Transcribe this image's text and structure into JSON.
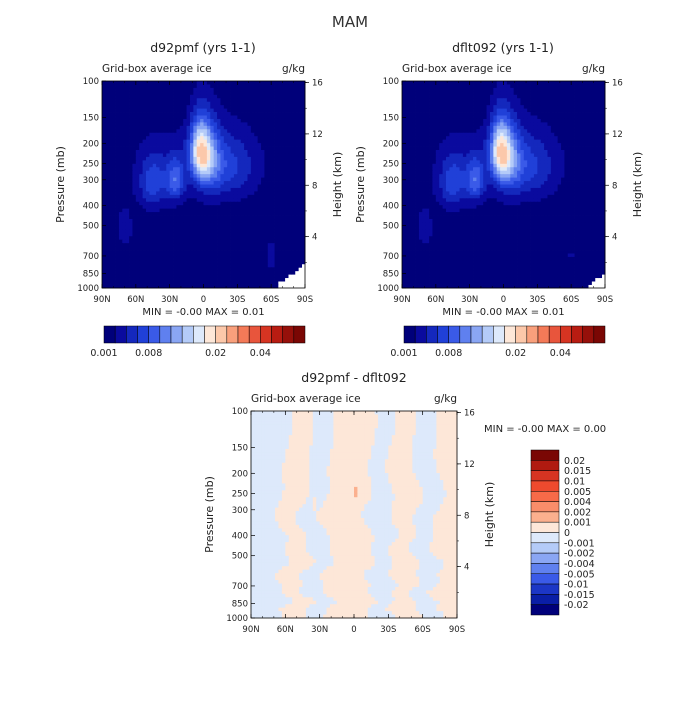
{
  "figure": {
    "title": "MAM"
  },
  "chart_data": [
    {
      "type": "heatmap",
      "id": "p1",
      "title": "d92pmf (yrs 1-1)",
      "subtitle_left": "Grid-box average ice",
      "subtitle_right": "g/kg",
      "ylabel": "Pressure (mb)",
      "ylabel_right": "Height (km)",
      "x_ticks": [
        "90N",
        "60N",
        "30N",
        "0",
        "30S",
        "60S",
        "90S"
      ],
      "y_ticks": [
        "100",
        "150",
        "200",
        "250",
        "300",
        "400",
        "500",
        "700",
        "850",
        "1000"
      ],
      "y_ticks_right": [
        "16",
        "12",
        "8",
        "4"
      ],
      "min_max_text": "MIN =   -0.00   MAX =    0.01",
      "colorbar_levels": [
        "0.001",
        "0.002",
        "0.004",
        "0.006",
        "0.008",
        "0.01",
        "0.012",
        "0.014",
        "0.016",
        "0.018",
        "0.02",
        "0.025",
        "0.03",
        "0.035",
        "0.04",
        "0.045",
        "0.05",
        "0.055",
        "0.06"
      ],
      "colorbar_tick_labels": [
        "0.001",
        "0.008",
        "0.02",
        "0.04"
      ],
      "colors": [
        "#00007a",
        "#0a0a9e",
        "#1428bd",
        "#2040d8",
        "#3a5ae8",
        "#5f80ef",
        "#8aa6f4",
        "#b4cbf8",
        "#dde9fb",
        "#fde7d8",
        "#fcc8aa",
        "#f9a07c",
        "#f47a58",
        "#e8553c",
        "#d63422",
        "#b81c12",
        "#96100a",
        "#7a0704"
      ],
      "features": [
        {
          "lat": 3,
          "p": 215,
          "peak": 0.014,
          "wlat": 9,
          "wp": 70
        },
        {
          "lat": -5,
          "p": 240,
          "peak": 0.008,
          "wlat": 12,
          "wp": 90
        },
        {
          "lat": 25,
          "p": 300,
          "peak": 0.0075,
          "wlat": 8,
          "wp": 70
        },
        {
          "lat": 45,
          "p": 310,
          "peak": 0.006,
          "wlat": 12,
          "wp": 90
        },
        {
          "lat": -25,
          "p": 260,
          "peak": 0.004,
          "wlat": 20,
          "wp": 90
        },
        {
          "lat": -60,
          "p": 700,
          "peak": 0.003,
          "wlat": 4,
          "wp": 120
        },
        {
          "lat": 70,
          "p": 520,
          "peak": 0.002,
          "wlat": 10,
          "wp": 150
        }
      ],
      "missing_region": {
        "lat_from": -65,
        "lat_to": -90,
        "p_from": 960
      }
    },
    {
      "type": "heatmap",
      "id": "p2",
      "title": "dflt092 (yrs 1-1)",
      "subtitle_left": "Grid-box average ice",
      "subtitle_right": "g/kg",
      "ylabel": "Pressure (mb)",
      "ylabel_right": "Height (km)",
      "x_ticks": [
        "90N",
        "60N",
        "30N",
        "0",
        "30S",
        "60S",
        "90S"
      ],
      "y_ticks": [
        "100",
        "150",
        "200",
        "250",
        "300",
        "400",
        "500",
        "700",
        "850",
        "1000"
      ],
      "y_ticks_right": [
        "16",
        "12",
        "8",
        "4"
      ],
      "min_max_text": "MIN =   -0.00   MAX =    0.01",
      "colorbar_levels": [
        "0.001",
        "0.002",
        "0.004",
        "0.006",
        "0.008",
        "0.01",
        "0.012",
        "0.014",
        "0.016",
        "0.018",
        "0.02",
        "0.025",
        "0.03",
        "0.035",
        "0.04",
        "0.045",
        "0.05",
        "0.055",
        "0.06"
      ],
      "colorbar_tick_labels": [
        "0.001",
        "0.008",
        "0.02",
        "0.04"
      ],
      "colors": [
        "#00007a",
        "#0a0a9e",
        "#1428bd",
        "#2040d8",
        "#3a5ae8",
        "#5f80ef",
        "#8aa6f4",
        "#b4cbf8",
        "#dde9fb",
        "#fde7d8",
        "#fcc8aa",
        "#f9a07c",
        "#f47a58",
        "#e8553c",
        "#d63422",
        "#b81c12",
        "#96100a",
        "#7a0704"
      ],
      "features": [
        {
          "lat": 3,
          "p": 215,
          "peak": 0.014,
          "wlat": 9,
          "wp": 70
        },
        {
          "lat": -5,
          "p": 240,
          "peak": 0.008,
          "wlat": 12,
          "wp": 90
        },
        {
          "lat": 25,
          "p": 300,
          "peak": 0.0075,
          "wlat": 8,
          "wp": 70
        },
        {
          "lat": 45,
          "p": 310,
          "peak": 0.006,
          "wlat": 12,
          "wp": 90
        },
        {
          "lat": -25,
          "p": 260,
          "peak": 0.004,
          "wlat": 20,
          "wp": 90
        },
        {
          "lat": -60,
          "p": 690,
          "peak": 0.002,
          "wlat": 3,
          "wp": 60
        },
        {
          "lat": 70,
          "p": 520,
          "peak": 0.002,
          "wlat": 10,
          "wp": 150
        }
      ],
      "missing_region": {
        "lat_from": -75,
        "lat_to": -90,
        "p_from": 960
      }
    },
    {
      "type": "heatmap",
      "id": "p3",
      "title": "d92pmf - dflt092",
      "subtitle_left": "Grid-box average ice",
      "subtitle_right": "g/kg",
      "ylabel": "Pressure (mb)",
      "ylabel_right": "Height (km)",
      "x_ticks": [
        "90N",
        "60N",
        "30N",
        "0",
        "30S",
        "60S",
        "90S"
      ],
      "y_ticks": [
        "100",
        "150",
        "200",
        "250",
        "300",
        "400",
        "500",
        "700",
        "850",
        "1000"
      ],
      "y_ticks_right": [
        "16",
        "12",
        "8",
        "4"
      ],
      "min_max_text": "MIN =   -0.00   MAX =    0.00",
      "colorbar_tick_labels": [
        "0.02",
        "0.015",
        "0.01",
        "0.005",
        "0.004",
        "0.002",
        "0.001",
        "0",
        "-0.001",
        "-0.002",
        "-0.004",
        "-0.005",
        "-0.01",
        "-0.015",
        "-0.02"
      ],
      "colors": [
        "#7a0704",
        "#b01a10",
        "#d63422",
        "#ee4a2e",
        "#f76a48",
        "#f98d6a",
        "#fbb08e",
        "#fde7d8",
        "#dde9fb",
        "#b4cbf8",
        "#8aa6f4",
        "#5f80ef",
        "#3a5ae8",
        "#1c36c6",
        "#0a1ea6",
        "#00007a"
      ],
      "bands": [
        {
          "lat": 72,
          "sign": -1
        },
        {
          "lat": 52,
          "sign": 1
        },
        {
          "lat": 33,
          "sign": -1
        },
        {
          "lat": 15,
          "sign": 1
        },
        {
          "lat": -5,
          "sign": 1
        },
        {
          "lat": -22,
          "sign": -1
        },
        {
          "lat": -45,
          "sign": 1
        },
        {
          "lat": -62,
          "sign": -1
        },
        {
          "lat": -82,
          "sign": 1
        }
      ],
      "spots": [
        {
          "lat": 34,
          "p": 285,
          "peak": 0.002
        },
        {
          "lat": -1,
          "p": 245,
          "peak": 0.002
        }
      ]
    }
  ]
}
